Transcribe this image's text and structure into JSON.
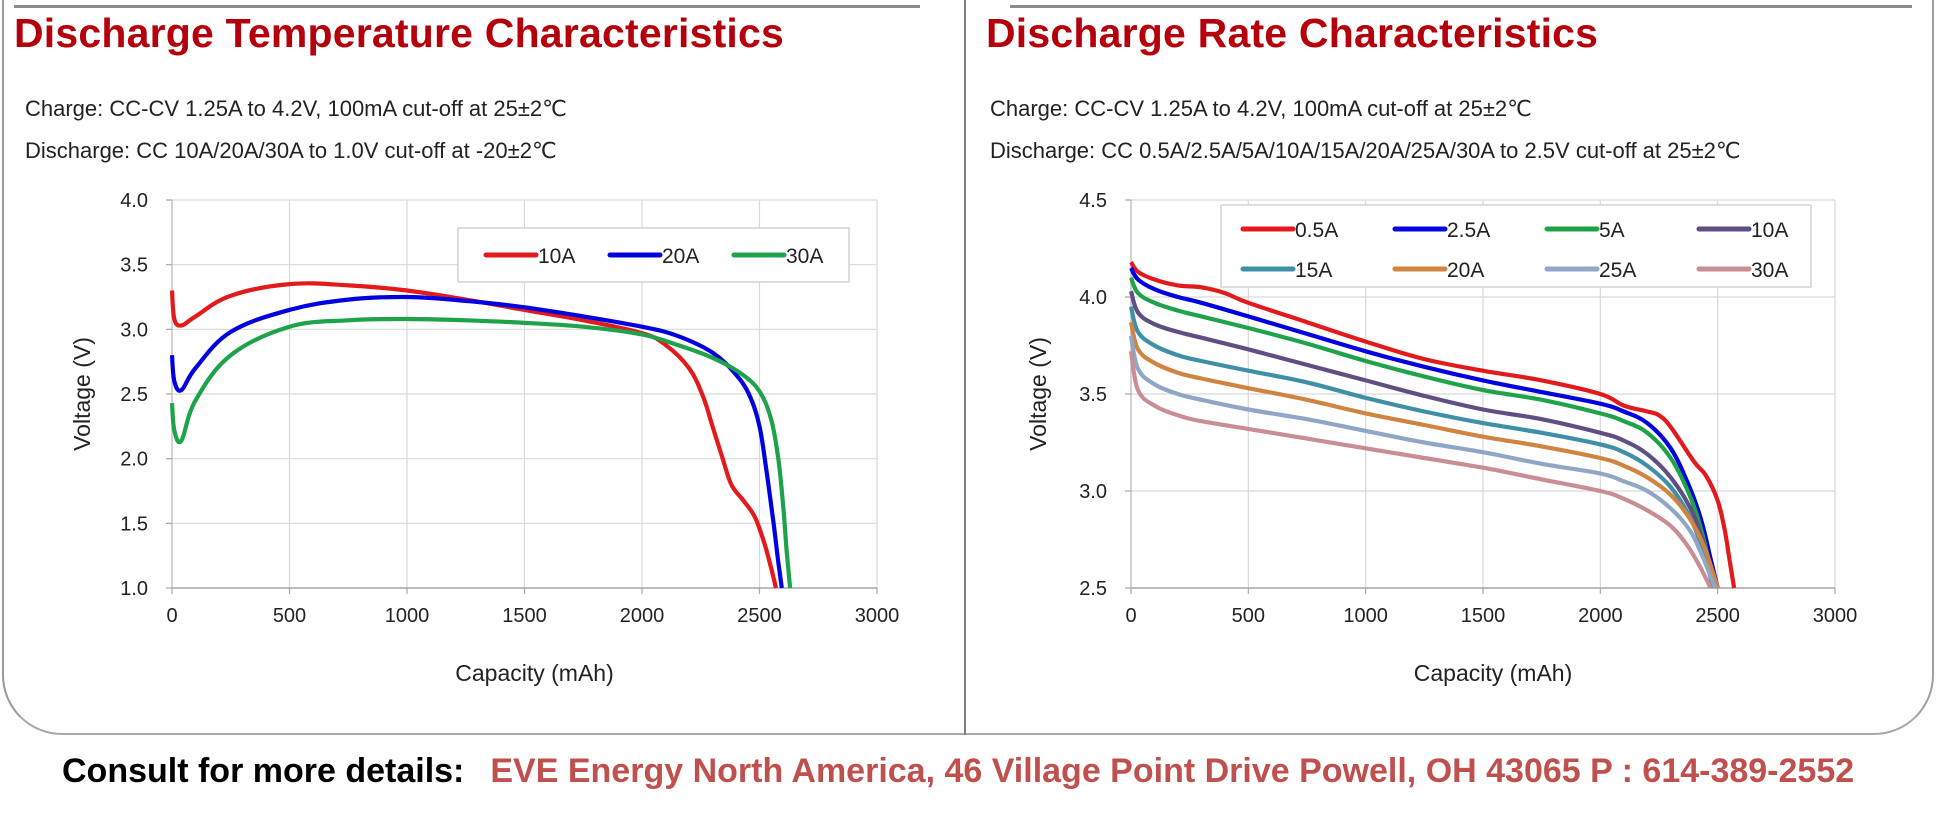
{
  "footer": {
    "label": "Consult for more details:",
    "address": "EVE Energy North America,  46 Village Point Drive  Powell, OH 43065  P : 614-389-2552"
  },
  "colors": {
    "title": "#b5000c",
    "footer_address": "#c0504d"
  },
  "chart_data": [
    {
      "type": "line",
      "title": "Discharge Temperature Characteristics",
      "subtitle_lines": [
        "Charge: CC-CV 1.25A to 4.2V, 100mA cut-off at 25±2℃",
        "Discharge: CC 10A/20A/30A to 1.0V cut-off at -20±2℃"
      ],
      "xlabel": "Capacity (mAh)",
      "ylabel": "Voltage (V)",
      "xlim": [
        0,
        3000
      ],
      "ylim": [
        1.0,
        4.0
      ],
      "xticks": [
        0,
        500,
        1000,
        1500,
        2000,
        2500,
        3000
      ],
      "yticks": [
        1.0,
        1.5,
        2.0,
        2.5,
        3.0,
        3.5,
        4.0
      ],
      "xtick_labels": [
        "0",
        "500",
        "1000",
        "1500",
        "2000",
        "2500",
        "3000"
      ],
      "ytick_labels": [
        "1.0",
        "1.5",
        "2.0",
        "2.5",
        "3.0",
        "3.5",
        "4.0"
      ],
      "grid": true,
      "legend_position": "top-right",
      "legend_columns": 3,
      "series": [
        {
          "name": "10A",
          "color": "#e31a1c",
          "x": [
            0,
            10,
            40,
            100,
            250,
            500,
            750,
            1000,
            1250,
            1500,
            1750,
            2000,
            2100,
            2200,
            2260,
            2300,
            2340,
            2380,
            2430,
            2480,
            2520,
            2550,
            2570
          ],
          "y": [
            3.3,
            3.08,
            3.03,
            3.1,
            3.26,
            3.35,
            3.34,
            3.3,
            3.23,
            3.15,
            3.07,
            2.97,
            2.88,
            2.7,
            2.48,
            2.25,
            2.02,
            1.8,
            1.68,
            1.55,
            1.35,
            1.15,
            1.0
          ]
        },
        {
          "name": "20A",
          "color": "#0000e0",
          "x": [
            0,
            10,
            40,
            100,
            250,
            500,
            750,
            1000,
            1250,
            1500,
            1750,
            2000,
            2150,
            2300,
            2400,
            2460,
            2500,
            2530,
            2560,
            2580,
            2595
          ],
          "y": [
            2.8,
            2.6,
            2.53,
            2.7,
            2.98,
            3.15,
            3.23,
            3.25,
            3.22,
            3.17,
            3.1,
            3.02,
            2.95,
            2.82,
            2.65,
            2.48,
            2.25,
            1.9,
            1.5,
            1.2,
            1.0
          ]
        },
        {
          "name": "30A",
          "color": "#1fa34a",
          "x": [
            0,
            10,
            40,
            100,
            250,
            500,
            750,
            1000,
            1250,
            1500,
            1750,
            2000,
            2150,
            2300,
            2420,
            2500,
            2550,
            2580,
            2600,
            2615,
            2630
          ],
          "y": [
            2.43,
            2.22,
            2.14,
            2.45,
            2.8,
            3.02,
            3.07,
            3.08,
            3.07,
            3.05,
            3.02,
            2.96,
            2.88,
            2.78,
            2.66,
            2.52,
            2.3,
            2.0,
            1.65,
            1.3,
            1.0
          ]
        }
      ]
    },
    {
      "type": "line",
      "title": "Discharge Rate Characteristics",
      "subtitle_lines": [
        "Charge: CC-CV 1.25A to 4.2V, 100mA cut-off at 25±2℃",
        "Discharge: CC 0.5A/2.5A/5A/10A/15A/20A/25A/30A to 2.5V cut-off at 25±2℃"
      ],
      "xlabel": "Capacity (mAh)",
      "ylabel": "Voltage (V)",
      "xlim": [
        0,
        3000
      ],
      "ylim": [
        2.5,
        4.5
      ],
      "xticks": [
        0,
        500,
        1000,
        1500,
        2000,
        2500,
        3000
      ],
      "yticks": [
        2.5,
        3.0,
        3.5,
        4.0,
        4.5
      ],
      "xtick_labels": [
        "0",
        "500",
        "1000",
        "1500",
        "2000",
        "2500",
        "3000"
      ],
      "ytick_labels": [
        "2.5",
        "3.0",
        "3.5",
        "4.0",
        "4.5"
      ],
      "grid": true,
      "legend_position": "top-right",
      "legend_columns": 4,
      "series": [
        {
          "name": "0.5A",
          "color": "#e31a1c",
          "x": [
            0,
            30,
            100,
            200,
            300,
            400,
            500,
            750,
            1000,
            1250,
            1500,
            1750,
            2000,
            2100,
            2200,
            2250,
            2300,
            2400,
            2450,
            2500,
            2530,
            2550,
            2570
          ],
          "y": [
            4.18,
            4.13,
            4.09,
            4.06,
            4.05,
            4.02,
            3.97,
            3.87,
            3.77,
            3.68,
            3.62,
            3.57,
            3.5,
            3.44,
            3.41,
            3.39,
            3.33,
            3.15,
            3.08,
            2.95,
            2.8,
            2.65,
            2.5
          ]
        },
        {
          "name": "2.5A",
          "color": "#0000e0",
          "x": [
            0,
            30,
            100,
            200,
            300,
            500,
            750,
            1000,
            1250,
            1500,
            1750,
            2000,
            2100,
            2200,
            2300,
            2380,
            2430,
            2470,
            2500
          ],
          "y": [
            4.15,
            4.09,
            4.04,
            4.0,
            3.97,
            3.9,
            3.81,
            3.72,
            3.64,
            3.57,
            3.51,
            3.45,
            3.41,
            3.35,
            3.22,
            3.02,
            2.85,
            2.65,
            2.5
          ]
        },
        {
          "name": "5A",
          "color": "#1fa34a",
          "x": [
            0,
            30,
            100,
            200,
            300,
            500,
            750,
            1000,
            1250,
            1500,
            1750,
            2000,
            2100,
            2200,
            2300,
            2380,
            2430,
            2470,
            2490
          ],
          "y": [
            4.1,
            4.02,
            3.97,
            3.93,
            3.9,
            3.84,
            3.76,
            3.67,
            3.59,
            3.52,
            3.47,
            3.4,
            3.36,
            3.3,
            3.17,
            2.98,
            2.8,
            2.6,
            2.5
          ]
        },
        {
          "name": "10A",
          "color": "#5f4f82",
          "x": [
            0,
            30,
            100,
            200,
            300,
            500,
            750,
            1000,
            1250,
            1500,
            1750,
            2000,
            2100,
            2200,
            2300,
            2380,
            2430,
            2470,
            2490
          ],
          "y": [
            4.03,
            3.92,
            3.86,
            3.82,
            3.79,
            3.73,
            3.65,
            3.57,
            3.49,
            3.42,
            3.37,
            3.3,
            3.26,
            3.19,
            3.07,
            2.92,
            2.77,
            2.6,
            2.5
          ]
        },
        {
          "name": "15A",
          "color": "#3f8fa8",
          "x": [
            0,
            30,
            100,
            200,
            300,
            500,
            750,
            1000,
            1250,
            1500,
            1750,
            2000,
            2100,
            2200,
            2300,
            2380,
            2430,
            2460,
            2480
          ],
          "y": [
            3.95,
            3.82,
            3.75,
            3.7,
            3.67,
            3.62,
            3.56,
            3.48,
            3.41,
            3.35,
            3.3,
            3.24,
            3.2,
            3.13,
            3.02,
            2.87,
            2.72,
            2.6,
            2.5
          ]
        },
        {
          "name": "20A",
          "color": "#d0843f",
          "x": [
            0,
            30,
            100,
            200,
            300,
            500,
            750,
            1000,
            1250,
            1500,
            1750,
            2000,
            2100,
            2200,
            2300,
            2380,
            2440,
            2480,
            2500
          ],
          "y": [
            3.87,
            3.73,
            3.66,
            3.61,
            3.58,
            3.53,
            3.47,
            3.4,
            3.34,
            3.28,
            3.23,
            3.17,
            3.13,
            3.07,
            2.98,
            2.86,
            2.72,
            2.58,
            2.5
          ]
        },
        {
          "name": "25A",
          "color": "#8fa6c6",
          "x": [
            0,
            30,
            100,
            200,
            300,
            500,
            750,
            1000,
            1250,
            1500,
            1750,
            2000,
            2100,
            2200,
            2300,
            2380,
            2430,
            2470,
            2490
          ],
          "y": [
            3.8,
            3.63,
            3.55,
            3.5,
            3.47,
            3.42,
            3.37,
            3.31,
            3.25,
            3.2,
            3.14,
            3.09,
            3.05,
            3.0,
            2.91,
            2.8,
            2.68,
            2.56,
            2.5
          ]
        },
        {
          "name": "30A",
          "color": "#c98e94",
          "x": [
            0,
            30,
            100,
            200,
            300,
            500,
            750,
            1000,
            1250,
            1500,
            1750,
            2000,
            2100,
            2200,
            2300,
            2370,
            2420,
            2450,
            2470
          ],
          "y": [
            3.72,
            3.52,
            3.44,
            3.39,
            3.36,
            3.32,
            3.27,
            3.22,
            3.17,
            3.12,
            3.06,
            3.0,
            2.96,
            2.9,
            2.82,
            2.72,
            2.62,
            2.55,
            2.5
          ]
        }
      ]
    }
  ]
}
